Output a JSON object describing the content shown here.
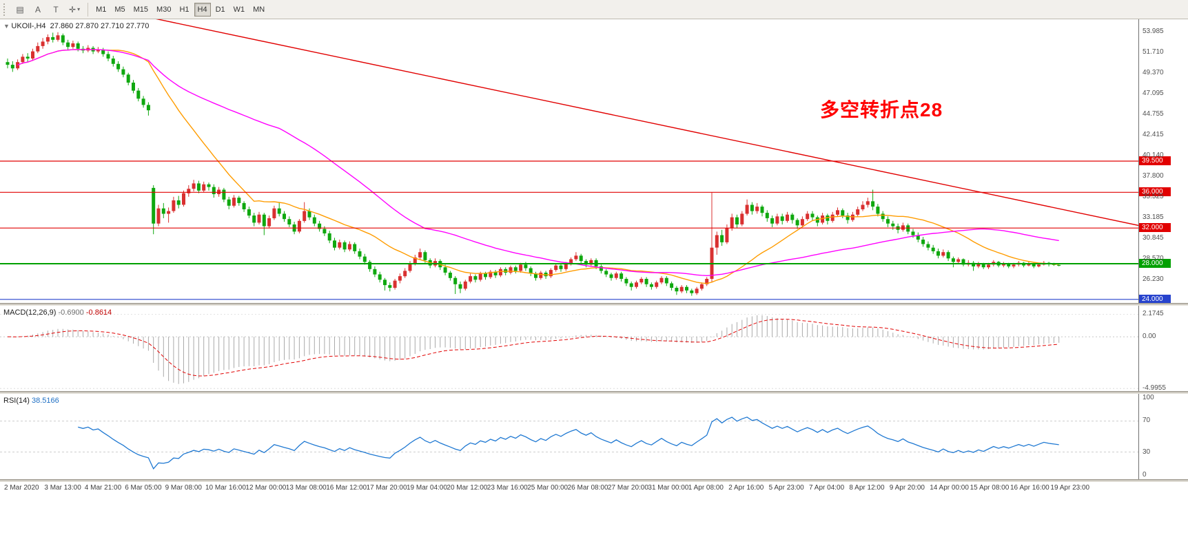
{
  "toolbar": {
    "left_buttons": [
      {
        "name": "charts-grid-icon",
        "glyph": "▤"
      },
      {
        "name": "auto-scroll-icon",
        "glyph": "A"
      },
      {
        "name": "chart-shift-icon",
        "glyph": "T"
      },
      {
        "name": "cursor-tool-icon",
        "glyph": "✛",
        "caret": "▾"
      }
    ],
    "timeframes": [
      "M1",
      "M5",
      "M15",
      "M30",
      "H1",
      "H4",
      "D1",
      "W1",
      "MN"
    ],
    "active_timeframe": "H4"
  },
  "main_chart": {
    "title": "UKOIl-,H4  27.860 27.870 27.710 27.770",
    "annotation": "多空转折点28"
  },
  "macd_panel": {
    "name": "MACD(12,26,9)",
    "value_main": "-0.6900",
    "value_signal": "-0.8614",
    "ticks": [
      "2.1745",
      "0.00",
      "-4.9955"
    ]
  },
  "rsi_panel": {
    "name": "RSI(14)",
    "value": "38.5166",
    "ticks": [
      "100",
      "70",
      "30",
      "0"
    ],
    "levels": [
      70,
      30
    ]
  },
  "time_axis": {
    "labels": [
      "2 Mar 2020",
      "3 Mar 13:00",
      "4 Mar 21:00",
      "6 Mar 05:00",
      "9 Mar 08:00",
      "10 Mar 16:00",
      "12 Mar 00:00",
      "13 Mar 08:00",
      "16 Mar 12:00",
      "17 Mar 20:00",
      "19 Mar 04:00",
      "20 Mar 12:00",
      "23 Mar 16:00",
      "25 Mar 00:00",
      "26 Mar 08:00",
      "27 Mar 20:00",
      "31 Mar 00:00",
      "1 Apr 08:00",
      "2 Apr 16:00",
      "5 Apr 23:00",
      "7 Apr 04:00",
      "8 Apr 12:00",
      "9 Apr 20:00",
      "14 Apr 00:00",
      "15 Apr 08:00",
      "16 Apr 16:00",
      "19 Apr 23:00"
    ],
    "bars_per_label": 8
  },
  "colors": {
    "candle_up": "#d93030",
    "candle_down": "#0fa80f",
    "ma_fast": "#ff9c00",
    "ma_slow": "#ff00ff",
    "trendline": "#e10000",
    "level_red": "#e10000",
    "level_green": "#00a000",
    "level_blue": "#2743cd",
    "macd_hist": "#a9a9a9",
    "macd_signal": "#e10000",
    "rsi_line": "#1e78d2",
    "annotation": "#ff0000"
  },
  "chart_data": {
    "type": "candlestick",
    "symbol": "UKOIl-",
    "timeframe": "H4",
    "current_ohlc": {
      "open": "27.860",
      "high": "27.870",
      "low": "27.710",
      "close": "27.770"
    },
    "price_ticks": [
      "53.985",
      "51.710",
      "49.370",
      "47.095",
      "44.755",
      "42.415",
      "40.140",
      "37.800",
      "35.525",
      "33.185",
      "30.845",
      "28.570",
      "26.230"
    ],
    "levels": [
      {
        "label": "39.500",
        "value": 39.5,
        "color_key": "level_red",
        "width": 1.2
      },
      {
        "label": "36.000",
        "value": 36.0,
        "color_key": "level_red",
        "width": 1.2
      },
      {
        "label": "32.000",
        "value": 32.0,
        "color_key": "level_red",
        "width": 1.2
      },
      {
        "label": "28.000",
        "value": 28.0,
        "color_key": "level_green",
        "width": 2
      },
      {
        "label": "24.000",
        "value": 24.0,
        "color_key": "level_blue",
        "width": 1.2
      }
    ],
    "trendline": {
      "from_bar": 0,
      "from_price": 59.0,
      "to_bar": 226,
      "to_price": 32.2
    },
    "moving_averages": [
      {
        "period": 21,
        "color_key": "ma_fast"
      },
      {
        "period": 55,
        "color_key": "ma_slow"
      }
    ],
    "macd_params": [
      12,
      26,
      9
    ],
    "rsi_period": 14,
    "ohlc": [
      [
        50.6,
        51,
        49.9,
        50.3
      ],
      [
        50.3,
        50.7,
        49.5,
        49.9
      ],
      [
        49.9,
        50.9,
        49.7,
        50.6
      ],
      [
        50.6,
        51.5,
        50.4,
        51.2
      ],
      [
        51.2,
        51.6,
        50.6,
        51
      ],
      [
        51,
        52.1,
        50.8,
        51.8
      ],
      [
        51.8,
        52.8,
        51.6,
        52.4
      ],
      [
        52.4,
        53.3,
        52.1,
        52.9
      ],
      [
        52.9,
        53.7,
        52.6,
        53.4
      ],
      [
        53.4,
        53.9,
        52.8,
        53.1
      ],
      [
        53.1,
        53.95,
        52.9,
        53.6
      ],
      [
        53.6,
        53.8,
        52.5,
        52.8
      ],
      [
        52.8,
        53.1,
        52,
        52.3
      ],
      [
        52.3,
        53,
        52.1,
        52.7
      ],
      [
        52.7,
        52.9,
        51.8,
        52.1
      ],
      [
        52.1,
        52.4,
        51.6,
        51.9
      ],
      [
        51.9,
        52.5,
        51.7,
        52.2
      ],
      [
        52.2,
        52.4,
        51.5,
        51.8
      ],
      [
        51.8,
        52.3,
        51.6,
        52
      ],
      [
        52,
        52.2,
        51.2,
        51.5
      ],
      [
        51.5,
        51.8,
        50.7,
        51
      ],
      [
        51,
        51.3,
        50.1,
        50.4
      ],
      [
        50.4,
        50.7,
        49.5,
        49.8
      ],
      [
        49.8,
        50.1,
        48.9,
        49.2
      ],
      [
        49.2,
        49.4,
        48,
        48.3
      ],
      [
        48.3,
        48.6,
        47.1,
        47.4
      ],
      [
        47.4,
        47.7,
        46.2,
        46.5
      ],
      [
        46.5,
        46.8,
        45.5,
        45.8
      ],
      [
        45.8,
        46.1,
        44.6,
        45.2
      ],
      [
        36.5,
        36.8,
        31.3,
        32.5
      ],
      [
        32.5,
        34.6,
        32.2,
        34.2
      ],
      [
        34.2,
        34.8,
        33.1,
        33.6
      ],
      [
        33.6,
        34.3,
        32.6,
        33.9
      ],
      [
        33.9,
        35.5,
        33.7,
        35.1
      ],
      [
        35.1,
        35.6,
        34.2,
        34.6
      ],
      [
        34.6,
        36.2,
        34.4,
        35.9
      ],
      [
        35.9,
        36.8,
        35.5,
        36.4
      ],
      [
        36.4,
        37.4,
        36.1,
        37
      ],
      [
        37,
        37.3,
        35.9,
        36.2
      ],
      [
        36.2,
        37.2,
        36,
        36.9
      ],
      [
        36.9,
        37.1,
        36.2,
        36.6
      ],
      [
        36.6,
        36.9,
        35.4,
        35.8
      ],
      [
        35.8,
        36.6,
        35.5,
        36.3
      ],
      [
        36.3,
        36.5,
        34.9,
        35.2
      ],
      [
        35.2,
        35.5,
        34.1,
        34.5
      ],
      [
        34.5,
        35.7,
        34.3,
        35.4
      ],
      [
        35.4,
        35.6,
        34.5,
        34.8
      ],
      [
        34.8,
        35,
        33.8,
        34.1
      ],
      [
        34.1,
        34.4,
        33.1,
        33.4
      ],
      [
        33.4,
        33.7,
        32.2,
        32.6
      ],
      [
        32.6,
        33.8,
        32.4,
        33.5
      ],
      [
        33.5,
        33.7,
        31.2,
        32.2
      ],
      [
        32.2,
        33.4,
        32,
        33.1
      ],
      [
        33.1,
        34.5,
        32.9,
        34.2
      ],
      [
        34.2,
        34.9,
        33.3,
        33.6
      ],
      [
        33.6,
        33.9,
        32.7,
        33
      ],
      [
        33,
        33.3,
        32.1,
        32.4
      ],
      [
        32.4,
        32.7,
        31.3,
        31.6
      ],
      [
        31.6,
        33,
        31.4,
        32.8
      ],
      [
        32.8,
        34.9,
        32.6,
        33.9
      ],
      [
        33.9,
        34.2,
        32.9,
        33.2
      ],
      [
        33.2,
        33.5,
        32.2,
        32.5
      ],
      [
        32.5,
        32.8,
        31.6,
        31.9
      ],
      [
        31.9,
        32.2,
        31.1,
        31.4
      ],
      [
        31.4,
        31.7,
        30.3,
        30.6
      ],
      [
        30.6,
        30.9,
        29.5,
        29.8
      ],
      [
        29.8,
        30.7,
        29.6,
        30.4
      ],
      [
        30.4,
        30.6,
        29.3,
        29.6
      ],
      [
        29.6,
        30.5,
        29.4,
        30.2
      ],
      [
        30.2,
        30.4,
        29.1,
        29.4
      ],
      [
        29.4,
        29.7,
        28.5,
        28.8
      ],
      [
        28.8,
        29.1,
        27.9,
        28.2
      ],
      [
        28.2,
        28.4,
        27.1,
        27.4
      ],
      [
        27.4,
        27.7,
        26.5,
        26.8
      ],
      [
        26.8,
        27.1,
        25.9,
        26.2
      ],
      [
        26.2,
        26.4,
        25,
        25.6
      ],
      [
        25.6,
        25.9,
        24.9,
        25.3
      ],
      [
        25.3,
        26.3,
        25.1,
        26.1
      ],
      [
        26.1,
        26.9,
        25.8,
        26.6
      ],
      [
        26.6,
        27.5,
        26.4,
        27.2
      ],
      [
        27.2,
        28.3,
        27,
        28
      ],
      [
        28,
        29,
        27.8,
        28.7
      ],
      [
        28.7,
        29.7,
        28.5,
        29.3
      ],
      [
        29.3,
        29.5,
        28.1,
        28.4
      ],
      [
        28.4,
        28.6,
        27.5,
        27.8
      ],
      [
        27.8,
        28.6,
        27.6,
        28.3
      ],
      [
        28.3,
        28.5,
        27.3,
        27.6
      ],
      [
        27.6,
        27.9,
        26.7,
        27
      ],
      [
        27,
        27.2,
        26.1,
        26.4
      ],
      [
        26.4,
        26.6,
        24.6,
        25.7
      ],
      [
        25.7,
        26,
        24.7,
        25.2
      ],
      [
        25.2,
        26.2,
        25,
        26
      ],
      [
        26,
        26.9,
        25.8,
        26.6
      ],
      [
        26.6,
        26.8,
        25.9,
        26.2
      ],
      [
        26.2,
        27.1,
        26,
        26.9
      ],
      [
        26.9,
        27.1,
        26.2,
        26.5
      ],
      [
        26.5,
        27.3,
        26.3,
        27.1
      ],
      [
        27.1,
        27.3,
        26.4,
        26.7
      ],
      [
        26.7,
        27.6,
        26.5,
        27.4
      ],
      [
        27.4,
        27.6,
        26.7,
        27
      ],
      [
        27,
        27.8,
        26.8,
        27.6
      ],
      [
        27.6,
        27.8,
        26.9,
        27.2
      ],
      [
        27.2,
        28.1,
        27,
        27.9
      ],
      [
        27.9,
        28.2,
        27.2,
        27.5
      ],
      [
        27.5,
        27.7,
        26.6,
        26.9
      ],
      [
        26.9,
        27.1,
        26.1,
        26.4
      ],
      [
        26.4,
        27.2,
        26.2,
        27
      ],
      [
        27,
        27.2,
        26.3,
        26.6
      ],
      [
        26.6,
        27.5,
        26.4,
        27.3
      ],
      [
        27.3,
        28,
        27.1,
        27.8
      ],
      [
        27.8,
        28,
        27.1,
        27.4
      ],
      [
        27.4,
        28.2,
        27.2,
        28
      ],
      [
        28,
        28.7,
        27.8,
        28.5
      ],
      [
        28.5,
        29.3,
        28.3,
        28.9
      ],
      [
        28.9,
        29.1,
        28,
        28.3
      ],
      [
        28.3,
        28.5,
        27.6,
        27.9
      ],
      [
        27.9,
        28.6,
        27.7,
        28.4
      ],
      [
        28.4,
        28.6,
        27.4,
        27.7
      ],
      [
        27.7,
        27.9,
        26.9,
        27.2
      ],
      [
        27.2,
        27.4,
        26.5,
        26.8
      ],
      [
        26.8,
        27,
        26.1,
        26.4
      ],
      [
        26.4,
        27.1,
        26.2,
        26.9
      ],
      [
        26.9,
        27.1,
        26,
        26.3
      ],
      [
        26.3,
        26.5,
        25.5,
        25.8
      ],
      [
        25.8,
        26,
        25,
        25.4
      ],
      [
        25.4,
        26.1,
        25.2,
        25.9
      ],
      [
        25.9,
        26.5,
        25.7,
        26.3
      ],
      [
        26.3,
        26.5,
        25.4,
        25.7
      ],
      [
        25.7,
        25.9,
        25.1,
        25.4
      ],
      [
        25.4,
        26.1,
        25.2,
        25.9
      ],
      [
        25.9,
        26.6,
        25.7,
        26.4
      ],
      [
        26.4,
        26.6,
        25.5,
        25.8
      ],
      [
        25.8,
        26,
        25,
        25.3
      ],
      [
        25.3,
        25.5,
        24.5,
        24.9
      ],
      [
        24.9,
        25.6,
        24.7,
        25.4
      ],
      [
        25.4,
        25.6,
        24.7,
        25
      ],
      [
        25,
        25.2,
        24.4,
        24.7
      ],
      [
        24.7,
        25.4,
        24.5,
        25.2
      ],
      [
        25.2,
        25.9,
        25,
        25.7
      ],
      [
        25.7,
        26.5,
        25.5,
        26.3
      ],
      [
        26.3,
        36,
        25.9,
        29.8
      ],
      [
        29.8,
        31.6,
        29,
        31.2
      ],
      [
        31.2,
        31.8,
        30,
        30.4
      ],
      [
        30.4,
        32.4,
        30.2,
        32
      ],
      [
        32,
        33.6,
        31.7,
        33.2
      ],
      [
        33.2,
        33.5,
        32,
        32.4
      ],
      [
        32.4,
        33.9,
        32.2,
        33.6
      ],
      [
        33.6,
        35.2,
        33.4,
        34.6
      ],
      [
        34.6,
        34.9,
        33.5,
        33.9
      ],
      [
        33.9,
        34.8,
        33.6,
        34.4
      ],
      [
        34.4,
        34.6,
        33.3,
        33.7
      ],
      [
        33.7,
        34,
        32.7,
        33.1
      ],
      [
        33.1,
        33.4,
        32.1,
        32.5
      ],
      [
        32.5,
        33.6,
        32.3,
        33.3
      ],
      [
        33.3,
        33.6,
        32.4,
        32.8
      ],
      [
        32.8,
        33.8,
        32.6,
        33.5
      ],
      [
        33.5,
        33.7,
        32.5,
        32.9
      ],
      [
        32.9,
        33.1,
        31.9,
        32.3
      ],
      [
        32.3,
        33.3,
        32.1,
        33
      ],
      [
        33,
        33.9,
        32.8,
        33.6
      ],
      [
        33.6,
        33.9,
        32.8,
        33.2
      ],
      [
        33.2,
        33.4,
        32.2,
        32.6
      ],
      [
        32.6,
        33.7,
        32.4,
        33.4
      ],
      [
        33.4,
        33.6,
        32.4,
        32.8
      ],
      [
        32.8,
        33.8,
        32.6,
        33.5
      ],
      [
        33.5,
        34.3,
        33.3,
        34
      ],
      [
        34,
        34.2,
        33.1,
        33.4
      ],
      [
        33.4,
        33.7,
        32.5,
        32.9
      ],
      [
        32.9,
        33.8,
        32.7,
        33.5
      ],
      [
        33.5,
        34.4,
        33.3,
        34.1
      ],
      [
        34.1,
        35,
        33.9,
        34.6
      ],
      [
        34.6,
        35.4,
        34.3,
        35
      ],
      [
        35,
        36.3,
        34,
        34.4
      ],
      [
        34.4,
        34.7,
        33.3,
        33.6
      ],
      [
        33.6,
        33.9,
        32.7,
        33
      ],
      [
        33,
        33.3,
        32.1,
        32.5
      ],
      [
        32.5,
        32.8,
        31.8,
        32.2
      ],
      [
        32.2,
        32.5,
        31.4,
        31.8
      ],
      [
        31.8,
        32.6,
        31.6,
        32.3
      ],
      [
        32.3,
        32.5,
        31.3,
        31.6
      ],
      [
        31.6,
        31.9,
        30.9,
        31.2
      ],
      [
        31.2,
        31.5,
        30.4,
        30.7
      ],
      [
        30.7,
        31,
        29.9,
        30.2
      ],
      [
        30.2,
        30.5,
        29.5,
        29.8
      ],
      [
        29.8,
        30.1,
        29.1,
        29.4
      ],
      [
        29.4,
        29.7,
        28.6,
        28.9
      ],
      [
        28.9,
        29.6,
        28.7,
        29.3
      ],
      [
        29.3,
        29.5,
        28.3,
        28.6
      ],
      [
        28.6,
        28.8,
        27.6,
        28.2
      ],
      [
        28.2,
        28.7,
        28,
        28.5
      ],
      [
        28.5,
        28.6,
        27.7,
        27.9
      ],
      [
        27.9,
        28.4,
        27.7,
        28.1
      ],
      [
        28.1,
        28.3,
        27.2,
        27.7
      ],
      [
        27.7,
        28.2,
        27.5,
        28
      ],
      [
        28,
        28.1,
        27.4,
        27.6
      ],
      [
        27.6,
        28.1,
        27.4,
        27.9
      ],
      [
        27.9,
        28.4,
        27.7,
        28.2
      ],
      [
        28.2,
        28.3,
        27.6,
        27.8
      ],
      [
        27.8,
        28.2,
        27.6,
        28
      ],
      [
        28,
        28.1,
        27.5,
        27.7
      ],
      [
        27.7,
        28.1,
        27.5,
        27.9
      ],
      [
        27.9,
        28.3,
        27.7,
        28.1
      ],
      [
        28.1,
        28.2,
        27.6,
        27.8
      ],
      [
        27.8,
        28.2,
        27.7,
        28
      ],
      [
        28,
        28.1,
        27.5,
        27.7
      ],
      [
        27.7,
        28.1,
        27.6,
        27.9
      ],
      [
        27.9,
        28.3,
        27.8,
        28.1
      ],
      [
        28.1,
        28.2,
        27.7,
        27.95
      ],
      [
        27.95,
        28.1,
        27.75,
        27.86
      ],
      [
        27.86,
        27.87,
        27.71,
        27.77
      ]
    ]
  }
}
